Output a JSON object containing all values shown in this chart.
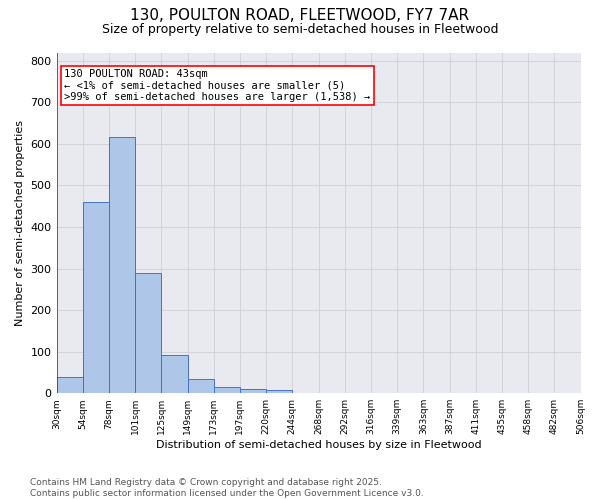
{
  "title1": "130, POULTON ROAD, FLEETWOOD, FY7 7AR",
  "title2": "Size of property relative to semi-detached houses in Fleetwood",
  "xlabel": "Distribution of semi-detached houses by size in Fleetwood",
  "ylabel": "Number of semi-detached properties",
  "bar_values": [
    40,
    460,
    617,
    290,
    93,
    33,
    15,
    10,
    7,
    0,
    0,
    0,
    0,
    0,
    0,
    0,
    0,
    0,
    0,
    0
  ],
  "bin_labels": [
    "30sqm",
    "54sqm",
    "78sqm",
    "101sqm",
    "125sqm",
    "149sqm",
    "173sqm",
    "197sqm",
    "220sqm",
    "244sqm",
    "268sqm",
    "292sqm",
    "316sqm",
    "339sqm",
    "363sqm",
    "387sqm",
    "411sqm",
    "435sqm",
    "458sqm",
    "482sqm",
    "506sqm"
  ],
  "bar_color": "#aec6e8",
  "bar_edge_color": "#4472c4",
  "annotation_text": "130 POULTON ROAD: 43sqm\n← <1% of semi-detached houses are smaller (5)\n>99% of semi-detached houses are larger (1,538) →",
  "annotation_box_color": "#ffffff",
  "annotation_box_edge": "#ff0000",
  "vline_color": "#ff0000",
  "ylim": [
    0,
    820
  ],
  "yticks": [
    0,
    100,
    200,
    300,
    400,
    500,
    600,
    700,
    800
  ],
  "grid_color": "#d0d0d8",
  "bg_color": "#e8eaf0",
  "footer": "Contains HM Land Registry data © Crown copyright and database right 2025.\nContains public sector information licensed under the Open Government Licence v3.0.",
  "title_fontsize": 11,
  "subtitle_fontsize": 9,
  "annot_fontsize": 7.5,
  "footer_fontsize": 6.5,
  "ylabel_fontsize": 8,
  "xlabel_fontsize": 8
}
